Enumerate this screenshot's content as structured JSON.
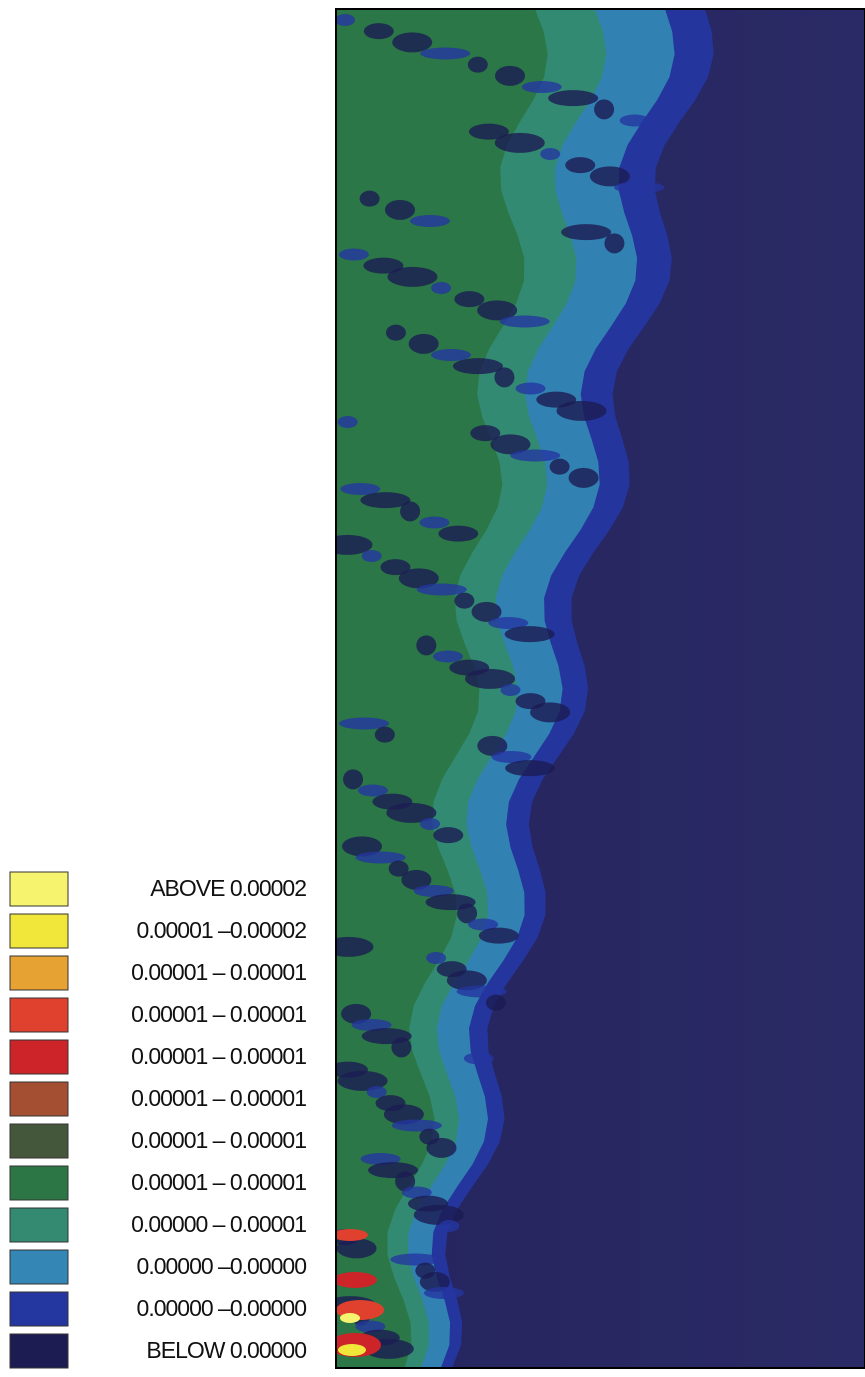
{
  "chart_data": {
    "type": "contour",
    "levels": [
      {
        "label": "ABOVE  0.00002",
        "color": "#f6f46e"
      },
      {
        "label": "0.00001 –0.00002",
        "color": "#f1e63a"
      },
      {
        "label": "0.00001 – 0.00001",
        "color": "#e6a232"
      },
      {
        "label": "0.00001 – 0.00001",
        "color": "#e0402e"
      },
      {
        "label": "0.00001 – 0.00001",
        "color": "#cc2428"
      },
      {
        "label": "0.00001 – 0.00001",
        "color": "#a44e32"
      },
      {
        "label": "0.00001 – 0.00001",
        "color": "#44573a"
      },
      {
        "label": "0.00001 – 0.00001",
        "color": "#2b7644"
      },
      {
        "label": "0.00000 – 0.00001",
        "color": "#338a70"
      },
      {
        "label": "0.00000 –0.00000",
        "color": "#3486b4"
      },
      {
        "label": "0.00000 –0.00000",
        "color": "#2436a0"
      },
      {
        "label": "BELOW  0.00000",
        "color": "#1c1c52"
      }
    ]
  }
}
